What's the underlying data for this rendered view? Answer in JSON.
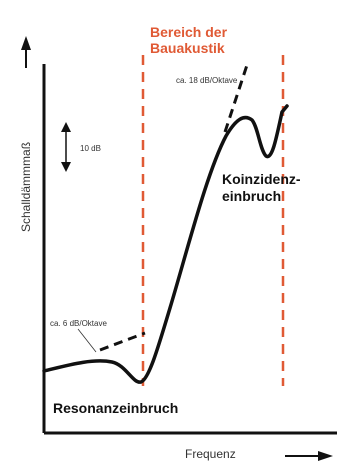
{
  "chart_data": {
    "type": "line",
    "title": "",
    "xlabel": "Frequenz",
    "ylabel": "Schalldämmmaß",
    "region": {
      "label_line1": "Bereich der",
      "label_line2": "Bauakustik",
      "color": "#e05a35"
    },
    "series": [
      {
        "color": "#111111"
      }
    ],
    "annotations": {
      "slope_low": "ca. 6 dB/Oktave",
      "slope_high": "ca. 18 dB/Oktave",
      "scale": "10 dB",
      "coincidence_line1": "Koinzidenz-",
      "coincidence_line2": "einbruch",
      "resonance": "Resonanzeinbruch"
    },
    "grid": false
  }
}
